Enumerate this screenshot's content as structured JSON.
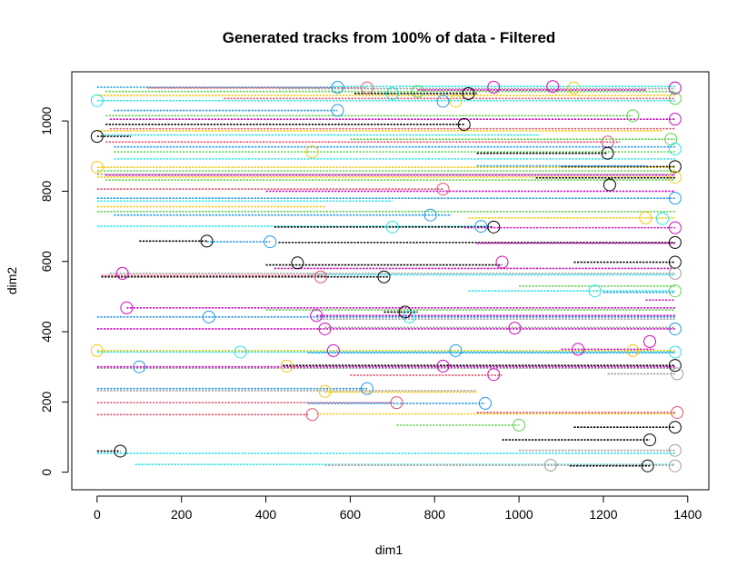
{
  "chart_data": {
    "type": "scatter",
    "title": "Generated tracks from 100% of data - Filtered",
    "xlabel": "dim1",
    "ylabel": "dim2",
    "xlim": [
      -60,
      1450
    ],
    "ylim": [
      -50,
      1140
    ],
    "xticks": [
      0,
      200,
      400,
      600,
      800,
      1000,
      1200,
      1400
    ],
    "yticks": [
      0,
      200,
      400,
      600,
      800,
      1000
    ],
    "xtick_labels": [
      "0",
      "200",
      "400",
      "600",
      "800",
      "1000",
      "1200",
      "1400"
    ],
    "ytick_labels": [
      "0",
      "200",
      "400",
      "600",
      "800",
      "1000"
    ],
    "grid": false,
    "legend": "none",
    "colors": {
      "black": "#000000",
      "red": "#DF536B",
      "green": "#61D04F",
      "blue": "#2297E6",
      "cyan": "#28E2E5",
      "magenta": "#CD0BBC",
      "gold": "#F5C710",
      "gray": "#9E9E9E"
    },
    "tracks": [
      {
        "color": "blue",
        "y": 1096,
        "x_start": 0,
        "x_end": 560
      },
      {
        "color": "red",
        "y": 1094,
        "x_start": 120,
        "x_end": 640
      },
      {
        "color": "cyan",
        "y": 1098,
        "x_start": 560,
        "x_end": 1370
      },
      {
        "color": "gray",
        "y": 1092,
        "x_start": 430,
        "x_end": 1370
      },
      {
        "color": "black",
        "y": 1078,
        "x_start": 610,
        "x_end": 900
      },
      {
        "color": "magenta",
        "y": 1088,
        "x_start": 760,
        "x_end": 1300
      },
      {
        "color": "green",
        "y": 1084,
        "x_start": 20,
        "x_end": 1370
      },
      {
        "color": "gold",
        "y": 1073,
        "x_start": 0,
        "x_end": 1370
      },
      {
        "color": "cyan",
        "y": 1058,
        "x_start": 0,
        "x_end": 1370
      },
      {
        "color": "red",
        "y": 1064,
        "x_start": 300,
        "x_end": 1370
      },
      {
        "color": "blue",
        "y": 1030,
        "x_start": 40,
        "x_end": 570
      },
      {
        "color": "green",
        "y": 1015,
        "x_start": 20,
        "x_end": 1270
      },
      {
        "color": "magenta",
        "y": 1005,
        "x_start": 30,
        "x_end": 1370
      },
      {
        "color": "black",
        "y": 990,
        "x_start": 20,
        "x_end": 870
      },
      {
        "color": "red",
        "y": 978,
        "x_start": 30,
        "x_end": 1370
      },
      {
        "color": "gold",
        "y": 972,
        "x_start": 0,
        "x_end": 1340
      },
      {
        "color": "cyan",
        "y": 960,
        "x_start": 10,
        "x_end": 1050
      },
      {
        "color": "black",
        "y": 956,
        "x_start": 0,
        "x_end": 80
      },
      {
        "color": "green",
        "y": 948,
        "x_start": 600,
        "x_end": 1370
      },
      {
        "color": "red",
        "y": 940,
        "x_start": 20,
        "x_end": 1240
      },
      {
        "color": "blue",
        "y": 926,
        "x_start": 40,
        "x_end": 1370
      },
      {
        "color": "green",
        "y": 912,
        "x_start": 40,
        "x_end": 1370
      },
      {
        "color": "black",
        "y": 908,
        "x_start": 900,
        "x_end": 1210
      },
      {
        "color": "cyan",
        "y": 892,
        "x_start": 40,
        "x_end": 1370
      },
      {
        "color": "gold",
        "y": 868,
        "x_start": 0,
        "x_end": 1370
      },
      {
        "color": "black",
        "y": 870,
        "x_start": 1100,
        "x_end": 1370
      },
      {
        "color": "blue",
        "y": 872,
        "x_start": 900,
        "x_end": 1300
      },
      {
        "color": "green",
        "y": 858,
        "x_start": 0,
        "x_end": 1370
      },
      {
        "color": "gray",
        "y": 848,
        "x_start": 0,
        "x_end": 1370
      },
      {
        "color": "magenta",
        "y": 846,
        "x_start": 20,
        "x_end": 1370
      },
      {
        "color": "gold",
        "y": 840,
        "x_start": 0,
        "x_end": 1370
      },
      {
        "color": "black",
        "y": 838,
        "x_start": 1040,
        "x_end": 1370
      },
      {
        "color": "green",
        "y": 832,
        "x_start": 20,
        "x_end": 1370
      },
      {
        "color": "red",
        "y": 806,
        "x_start": 0,
        "x_end": 820
      },
      {
        "color": "magenta",
        "y": 800,
        "x_start": 400,
        "x_end": 1370
      },
      {
        "color": "blue",
        "y": 780,
        "x_start": 0,
        "x_end": 1370
      },
      {
        "color": "cyan",
        "y": 772,
        "x_start": 0,
        "x_end": 700
      },
      {
        "color": "gold",
        "y": 756,
        "x_start": 0,
        "x_end": 540
      },
      {
        "color": "green",
        "y": 742,
        "x_start": 0,
        "x_end": 1370
      },
      {
        "color": "blue",
        "y": 732,
        "x_start": 40,
        "x_end": 840
      },
      {
        "color": "gold",
        "y": 724,
        "x_start": 880,
        "x_end": 1370
      },
      {
        "color": "cyan",
        "y": 700,
        "x_start": 0,
        "x_end": 920
      },
      {
        "color": "black",
        "y": 698,
        "x_start": 420,
        "x_end": 940
      },
      {
        "color": "magenta",
        "y": 696,
        "x_start": 870,
        "x_end": 1370
      },
      {
        "color": "black",
        "y": 658,
        "x_start": 100,
        "x_end": 260
      },
      {
        "color": "blue",
        "y": 656,
        "x_start": 260,
        "x_end": 410
      },
      {
        "color": "black",
        "y": 654,
        "x_start": 430,
        "x_end": 1370
      },
      {
        "color": "magenta",
        "y": 652,
        "x_start": 900,
        "x_end": 1370
      },
      {
        "color": "black",
        "y": 598,
        "x_start": 1130,
        "x_end": 1370
      },
      {
        "color": "black",
        "y": 590,
        "x_start": 400,
        "x_end": 960
      },
      {
        "color": "magenta",
        "y": 580,
        "x_start": 420,
        "x_end": 1370
      },
      {
        "color": "gray",
        "y": 566,
        "x_start": 30,
        "x_end": 1370
      },
      {
        "color": "cyan",
        "y": 562,
        "x_start": 500,
        "x_end": 1370
      },
      {
        "color": "red",
        "y": 560,
        "x_start": 10,
        "x_end": 540
      },
      {
        "color": "black",
        "y": 556,
        "x_start": 10,
        "x_end": 690
      },
      {
        "color": "green",
        "y": 530,
        "x_start": 1000,
        "x_end": 1370
      },
      {
        "color": "cyan",
        "y": 516,
        "x_start": 880,
        "x_end": 1370
      },
      {
        "color": "blue",
        "y": 512,
        "x_start": 1200,
        "x_end": 1370
      },
      {
        "color": "magenta",
        "y": 490,
        "x_start": 1300,
        "x_end": 1370
      },
      {
        "color": "magenta",
        "y": 468,
        "x_start": 70,
        "x_end": 1370
      },
      {
        "color": "black",
        "y": 456,
        "x_start": 680,
        "x_end": 760
      },
      {
        "color": "green",
        "y": 462,
        "x_start": 400,
        "x_end": 1370
      },
      {
        "color": "blue",
        "y": 442,
        "x_start": 0,
        "x_end": 1370
      },
      {
        "color": "magenta",
        "y": 446,
        "x_start": 520,
        "x_end": 1370
      },
      {
        "color": "gray",
        "y": 436,
        "x_start": 520,
        "x_end": 1370
      },
      {
        "color": "magenta",
        "y": 408,
        "x_start": 0,
        "x_end": 1370
      },
      {
        "color": "gray",
        "y": 412,
        "x_start": 540,
        "x_end": 1370
      },
      {
        "color": "gold",
        "y": 346,
        "x_start": 0,
        "x_end": 1370
      },
      {
        "color": "cyan",
        "y": 342,
        "x_start": 0,
        "x_end": 1370
      },
      {
        "color": "blue",
        "y": 340,
        "x_start": 500,
        "x_end": 1370
      },
      {
        "color": "magenta",
        "y": 350,
        "x_start": 1100,
        "x_end": 1320
      },
      {
        "color": "magenta",
        "y": 300,
        "x_start": 0,
        "x_end": 1370
      },
      {
        "color": "black",
        "y": 304,
        "x_start": 440,
        "x_end": 1370
      },
      {
        "color": "gray",
        "y": 296,
        "x_start": 0,
        "x_end": 1370
      },
      {
        "color": "red",
        "y": 276,
        "x_start": 600,
        "x_end": 960
      },
      {
        "color": "gray",
        "y": 280,
        "x_start": 1210,
        "x_end": 1370
      },
      {
        "color": "blue",
        "y": 238,
        "x_start": 0,
        "x_end": 640
      },
      {
        "color": "gray",
        "y": 232,
        "x_start": 0,
        "x_end": 900
      },
      {
        "color": "gold",
        "y": 228,
        "x_start": 540,
        "x_end": 900
      },
      {
        "color": "red",
        "y": 198,
        "x_start": 0,
        "x_end": 700
      },
      {
        "color": "blue",
        "y": 196,
        "x_start": 500,
        "x_end": 920
      },
      {
        "color": "red",
        "y": 164,
        "x_start": 0,
        "x_end": 500
      },
      {
        "color": "gold",
        "y": 166,
        "x_start": 520,
        "x_end": 1370
      },
      {
        "color": "red",
        "y": 170,
        "x_start": 900,
        "x_end": 1370
      },
      {
        "color": "green",
        "y": 134,
        "x_start": 710,
        "x_end": 1000
      },
      {
        "color": "black",
        "y": 128,
        "x_start": 1130,
        "x_end": 1370
      },
      {
        "color": "black",
        "y": 92,
        "x_start": 960,
        "x_end": 1310
      },
      {
        "color": "black",
        "y": 60,
        "x_start": 0,
        "x_end": 55
      },
      {
        "color": "cyan",
        "y": 54,
        "x_start": 0,
        "x_end": 1370
      },
      {
        "color": "gray",
        "y": 62,
        "x_start": 1000,
        "x_end": 1370
      },
      {
        "color": "cyan",
        "y": 22,
        "x_start": 90,
        "x_end": 1370
      },
      {
        "color": "gray",
        "y": 20,
        "x_start": 540,
        "x_end": 1370
      },
      {
        "color": "black",
        "y": 18,
        "x_start": 1120,
        "x_end": 1310
      }
    ],
    "markers": [
      {
        "color": "cyan",
        "x": 0,
        "y": 1058
      },
      {
        "color": "black",
        "x": 0,
        "y": 956
      },
      {
        "color": "gold",
        "x": 0,
        "y": 868
      },
      {
        "color": "blue",
        "x": 570,
        "y": 1096
      },
      {
        "color": "red",
        "x": 640,
        "y": 1094
      },
      {
        "color": "green",
        "x": 760,
        "y": 1084
      },
      {
        "color": "blue",
        "x": 820,
        "y": 1056
      },
      {
        "color": "black",
        "x": 880,
        "y": 1078
      },
      {
        "color": "gold",
        "x": 850,
        "y": 1056
      },
      {
        "color": "magenta",
        "x": 1080,
        "y": 1098
      },
      {
        "color": "gold",
        "x": 1130,
        "y": 1094
      },
      {
        "color": "blue",
        "x": 570,
        "y": 1030
      },
      {
        "color": "black",
        "x": 870,
        "y": 990
      },
      {
        "color": "green",
        "x": 1270,
        "y": 1015
      },
      {
        "color": "magenta",
        "x": 1370,
        "y": 1005
      },
      {
        "color": "red",
        "x": 1210,
        "y": 940
      },
      {
        "color": "black",
        "x": 1210,
        "y": 908
      },
      {
        "color": "gold",
        "x": 510,
        "y": 912
      },
      {
        "color": "cyan",
        "x": 1370,
        "y": 1094
      },
      {
        "color": "green",
        "x": 1370,
        "y": 1064
      },
      {
        "color": "black",
        "x": 1370,
        "y": 870
      },
      {
        "color": "black",
        "x": 1215,
        "y": 818
      },
      {
        "color": "gold",
        "x": 1370,
        "y": 840
      },
      {
        "color": "blue",
        "x": 1370,
        "y": 780
      },
      {
        "color": "red",
        "x": 820,
        "y": 806
      },
      {
        "color": "blue",
        "x": 790,
        "y": 732
      },
      {
        "color": "cyan",
        "x": 700,
        "y": 698
      },
      {
        "color": "black",
        "x": 940,
        "y": 698
      },
      {
        "color": "blue",
        "x": 910,
        "y": 700
      },
      {
        "color": "gold",
        "x": 1300,
        "y": 724
      },
      {
        "color": "cyan",
        "x": 1340,
        "y": 722
      },
      {
        "color": "magenta",
        "x": 1370,
        "y": 696
      },
      {
        "color": "black",
        "x": 260,
        "y": 658
      },
      {
        "color": "blue",
        "x": 410,
        "y": 656
      },
      {
        "color": "black",
        "x": 1370,
        "y": 654
      },
      {
        "color": "black",
        "x": 1370,
        "y": 598
      },
      {
        "color": "black",
        "x": 475,
        "y": 596
      },
      {
        "color": "magenta",
        "x": 960,
        "y": 598
      },
      {
        "color": "black",
        "x": 680,
        "y": 556
      },
      {
        "color": "magenta",
        "x": 60,
        "y": 566
      },
      {
        "color": "red",
        "x": 530,
        "y": 556
      },
      {
        "color": "gray",
        "x": 1370,
        "y": 566
      },
      {
        "color": "green",
        "x": 1370,
        "y": 516
      },
      {
        "color": "cyan",
        "x": 1180,
        "y": 516
      },
      {
        "color": "magenta",
        "x": 70,
        "y": 468
      },
      {
        "color": "black",
        "x": 730,
        "y": 456
      },
      {
        "color": "magenta",
        "x": 520,
        "y": 446
      },
      {
        "color": "blue",
        "x": 265,
        "y": 442
      },
      {
        "color": "cyan",
        "x": 740,
        "y": 442
      },
      {
        "color": "magenta",
        "x": 540,
        "y": 408
      },
      {
        "color": "magenta",
        "x": 990,
        "y": 410
      },
      {
        "color": "blue",
        "x": 1370,
        "y": 408
      },
      {
        "color": "magenta",
        "x": 1310,
        "y": 372
      },
      {
        "color": "gold",
        "x": 0,
        "y": 346
      },
      {
        "color": "cyan",
        "x": 340,
        "y": 342
      },
      {
        "color": "magenta",
        "x": 560,
        "y": 346
      },
      {
        "color": "blue",
        "x": 850,
        "y": 346
      },
      {
        "color": "magenta",
        "x": 1140,
        "y": 350
      },
      {
        "color": "gold",
        "x": 1270,
        "y": 346
      },
      {
        "color": "cyan",
        "x": 1370,
        "y": 342
      },
      {
        "color": "blue",
        "x": 100,
        "y": 300
      },
      {
        "color": "gold",
        "x": 450,
        "y": 302
      },
      {
        "color": "magenta",
        "x": 820,
        "y": 302
      },
      {
        "color": "black",
        "x": 1370,
        "y": 304
      },
      {
        "color": "gray",
        "x": 1375,
        "y": 280
      },
      {
        "color": "magenta",
        "x": 940,
        "y": 278
      },
      {
        "color": "gold",
        "x": 540,
        "y": 230
      },
      {
        "color": "blue",
        "x": 640,
        "y": 238
      },
      {
        "color": "red",
        "x": 710,
        "y": 198
      },
      {
        "color": "blue",
        "x": 920,
        "y": 196
      },
      {
        "color": "red",
        "x": 510,
        "y": 164
      },
      {
        "color": "red",
        "x": 1375,
        "y": 170
      },
      {
        "color": "green",
        "x": 1000,
        "y": 134
      },
      {
        "color": "black",
        "x": 1370,
        "y": 128
      },
      {
        "color": "black",
        "x": 1310,
        "y": 92
      },
      {
        "color": "black",
        "x": 55,
        "y": 60
      },
      {
        "color": "gray",
        "x": 1370,
        "y": 62
      },
      {
        "color": "gray",
        "x": 1075,
        "y": 20
      },
      {
        "color": "black",
        "x": 1305,
        "y": 18
      },
      {
        "color": "gray",
        "x": 1370,
        "y": 18
      },
      {
        "color": "magenta",
        "x": 1370,
        "y": 1094
      },
      {
        "color": "cyan",
        "x": 700,
        "y": 1078
      },
      {
        "color": "magenta",
        "x": 940,
        "y": 1096
      },
      {
        "color": "green",
        "x": 1360,
        "y": 948
      },
      {
        "color": "cyan",
        "x": 1370,
        "y": 920
      }
    ]
  }
}
